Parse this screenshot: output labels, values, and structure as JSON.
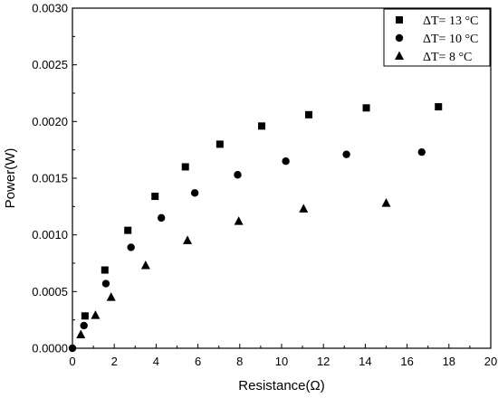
{
  "chart_data": {
    "type": "scatter",
    "xlabel": "Resistance(Ω)",
    "ylabel": "Power(W)",
    "xlim": [
      0,
      20
    ],
    "ylim": [
      0,
      0.003
    ],
    "x_ticks": [
      "0",
      "2",
      "4",
      "6",
      "8",
      "10",
      "12",
      "14",
      "16",
      "18",
      "20"
    ],
    "y_ticks": [
      "0.0000",
      "0.0005",
      "0.0010",
      "0.0015",
      "0.0020",
      "0.0025",
      "0.0030"
    ],
    "grid": false,
    "legend_position": "top-right",
    "series": [
      {
        "name": "ΔT= 13 °C",
        "marker": "square",
        "x": [
          0.6,
          1.55,
          2.65,
          3.95,
          5.4,
          7.05,
          9.05,
          11.3,
          14.05,
          17.5
        ],
        "y": [
          0.000285,
          0.00069,
          0.00104,
          0.00134,
          0.0016,
          0.0018,
          0.00196,
          0.00206,
          0.00212,
          0.00213
        ]
      },
      {
        "name": "ΔT= 10 °C",
        "marker": "circle",
        "x": [
          0.0,
          0.55,
          1.6,
          2.8,
          4.25,
          5.85,
          7.9,
          10.2,
          13.1,
          16.7
        ],
        "y": [
          0.0,
          0.0002,
          0.00057,
          0.00089,
          0.00115,
          0.00137,
          0.00153,
          0.00165,
          0.00171,
          0.00173
        ]
      },
      {
        "name": "ΔT= 8 °C",
        "marker": "triangle",
        "x": [
          0.4,
          1.1,
          1.85,
          3.5,
          5.5,
          7.95,
          11.05,
          15.0
        ],
        "y": [
          0.00012,
          0.00029,
          0.00045,
          0.00073,
          0.00095,
          0.00112,
          0.00123,
          0.00128
        ]
      }
    ]
  }
}
